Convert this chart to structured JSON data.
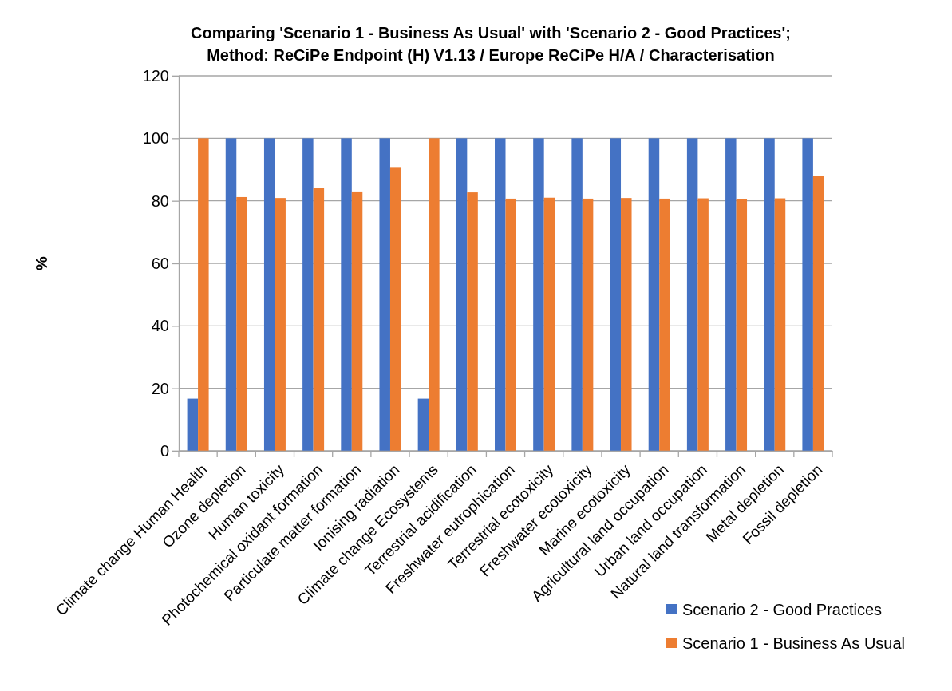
{
  "chart_data": {
    "type": "bar",
    "title": "Comparing 'Scenario 1 - Business As Usual' with  'Scenario 2 - Good Practices'; Method: ReCiPe Endpoint (H) V1.13 / Europe ReCiPe H/A / Characterisation",
    "ylabel": "%",
    "categories": [
      "Climate change Human Health",
      "Ozone depletion",
      "Human toxicity",
      "Photochemical oxidant formation",
      "Particulate matter formation",
      "Ionising radiation",
      "Climate change Ecosystems",
      "Terrestrial acidification",
      "Freshwater eutrophication",
      "Terrestrial ecotoxicity",
      "Freshwater ecotoxicity",
      "Marine ecotoxicity",
      "Agricultural land occupation",
      "Urban land occupation",
      "Natural land transformation",
      "Metal depletion",
      "Fossil depletion"
    ],
    "series": [
      {
        "name": "Scenario 2 - Good Practices",
        "color": "#4472c4",
        "values": [
          16.7,
          100,
          100,
          100,
          100,
          100,
          16.7,
          100,
          100,
          100,
          100,
          100,
          100,
          100,
          100,
          100,
          100
        ]
      },
      {
        "name": "Scenario 1 - Business As Usual",
        "color": "#ed7d31",
        "values": [
          100,
          81.2,
          80.9,
          84.1,
          83.0,
          90.8,
          100,
          82.7,
          80.7,
          81.0,
          80.7,
          80.9,
          80.7,
          80.8,
          80.5,
          80.8,
          87.9
        ]
      }
    ],
    "ylim": [
      0,
      120
    ],
    "yticks": [
      0,
      20,
      40,
      60,
      80,
      100,
      120
    ],
    "grid": "y",
    "legend": "bottom right"
  }
}
